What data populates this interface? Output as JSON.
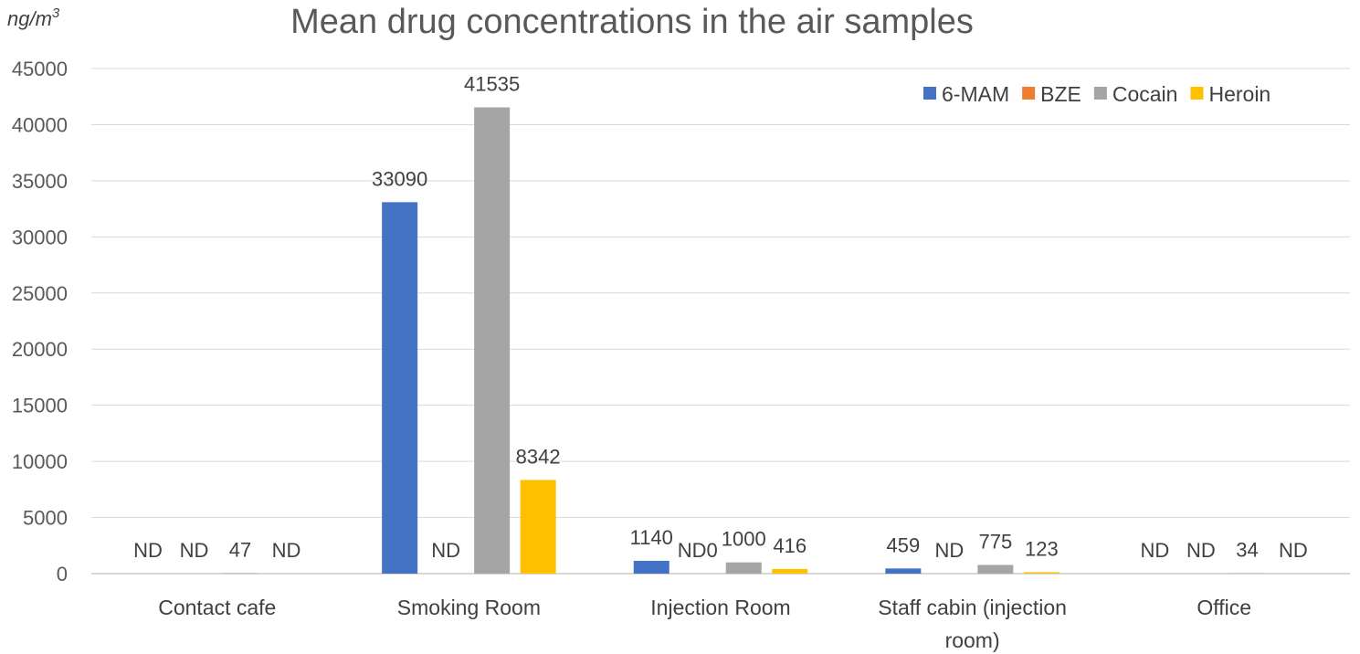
{
  "chart_data": {
    "type": "bar",
    "title": "Mean drug concentrations in the air samples",
    "unit_label": "ng/m",
    "unit_superscript": "3",
    "xlabel": "",
    "ylabel": "",
    "ylim": [
      0,
      45000
    ],
    "yticks": [
      0,
      5000,
      10000,
      15000,
      20000,
      25000,
      30000,
      35000,
      40000,
      45000
    ],
    "grid": true,
    "legend_position": "top-right",
    "categories": [
      {
        "lines": [
          "Contact cafe"
        ]
      },
      {
        "lines": [
          "Smoking Room"
        ]
      },
      {
        "lines": [
          "Injection Room"
        ]
      },
      {
        "lines": [
          "Staff cabin (injection",
          "room)"
        ]
      },
      {
        "lines": [
          "Office"
        ]
      }
    ],
    "series": [
      {
        "name": "6-MAM",
        "color": "#4472C4",
        "values": [
          0,
          33090,
          1140,
          459,
          0
        ],
        "labels": [
          "ND",
          "33090",
          "1140",
          "459",
          "ND"
        ]
      },
      {
        "name": "BZE",
        "color": "#ED7D31",
        "values": [
          0,
          0,
          0,
          0,
          0
        ],
        "labels": [
          "ND",
          "ND",
          "ND0",
          "ND",
          "ND"
        ]
      },
      {
        "name": "Cocain",
        "color": "#A5A5A5",
        "values": [
          47,
          41535,
          1000,
          775,
          34
        ],
        "labels": [
          "47",
          "41535",
          "1000",
          "775",
          "34"
        ]
      },
      {
        "name": "Heroin",
        "color": "#FFC000",
        "values": [
          0,
          8342,
          416,
          123,
          0
        ],
        "labels": [
          "ND",
          "8342",
          "416",
          "123",
          "ND"
        ]
      }
    ]
  }
}
